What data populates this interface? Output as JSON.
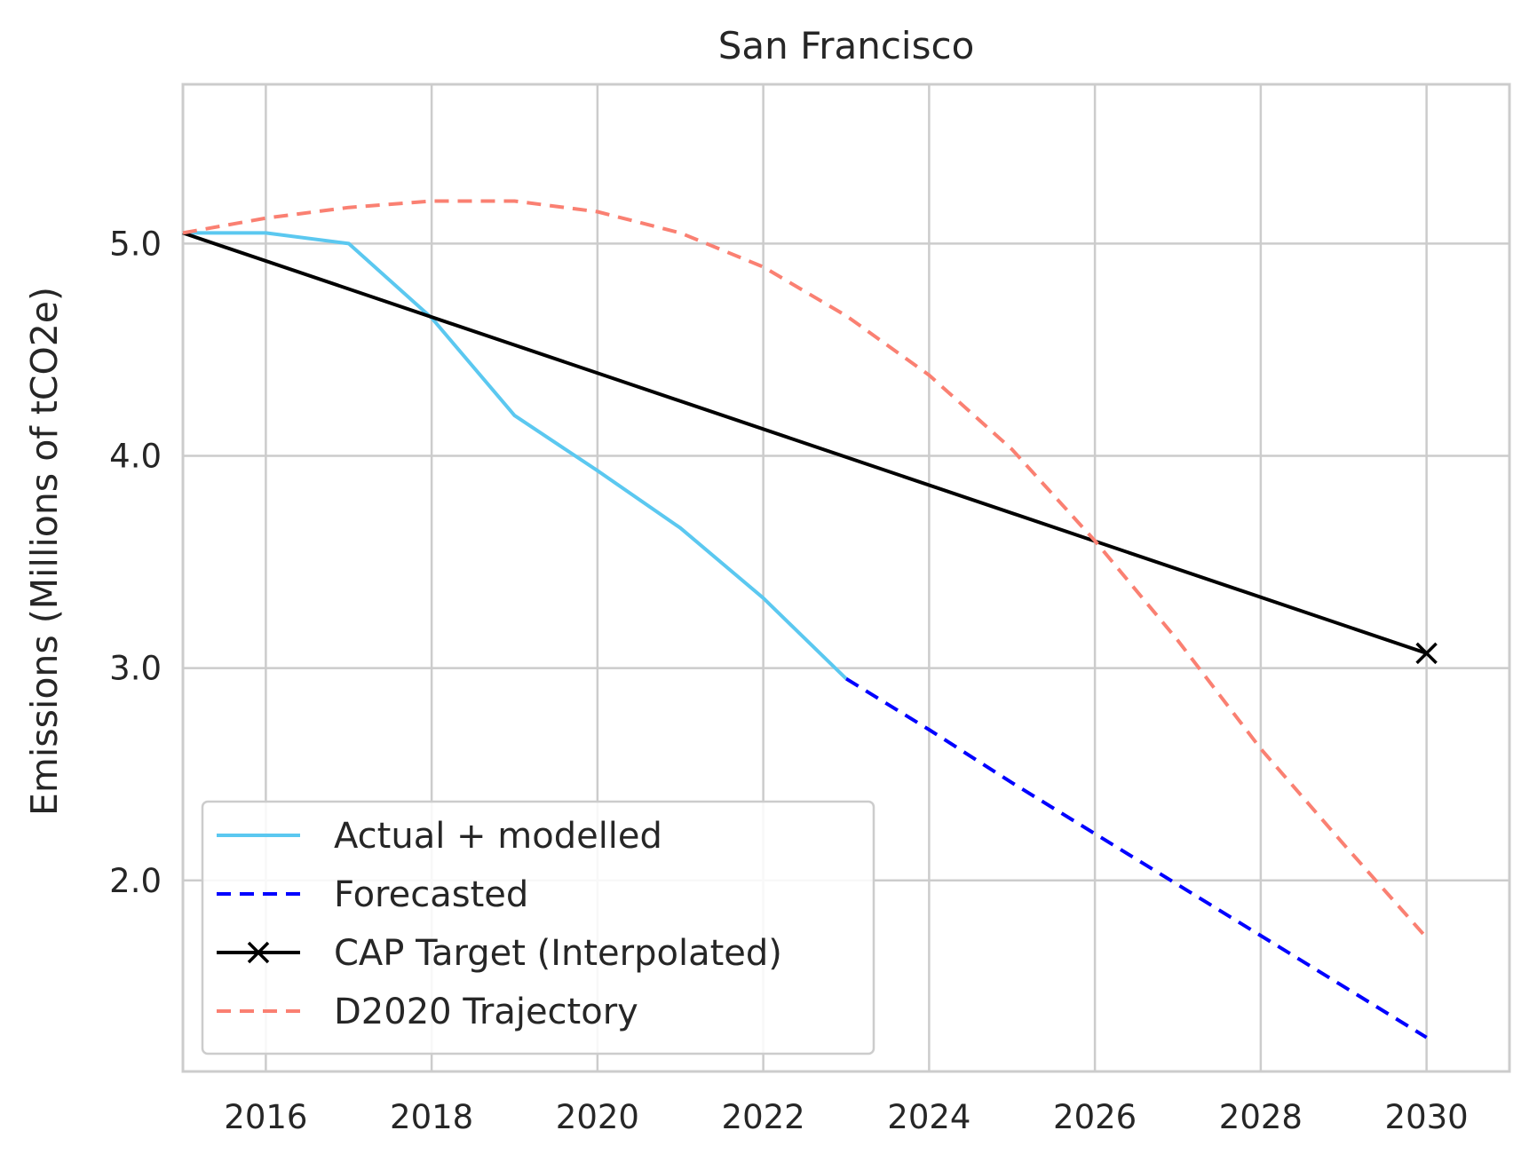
{
  "chart_data": {
    "type": "line",
    "title": "San Francisco",
    "xlabel": "",
    "ylabel": "Emissions (Millions of tCO2e)",
    "xlim": [
      2015,
      2031
    ],
    "ylim": [
      1.1,
      5.75
    ],
    "xticks": [
      2016,
      2018,
      2020,
      2022,
      2024,
      2026,
      2028,
      2030
    ],
    "yticks": [
      2.0,
      3.0,
      4.0,
      5.0
    ],
    "grid": true,
    "legend_position": "lower-left",
    "series": [
      {
        "name": "Actual + modelled",
        "color": "#5bc8f0",
        "style": "solid",
        "marker": "none",
        "x": [
          2015,
          2016,
          2017,
          2018,
          2019,
          2020,
          2021,
          2022,
          2023
        ],
        "y": [
          5.05,
          5.05,
          5.0,
          4.65,
          4.19,
          3.93,
          3.66,
          3.33,
          2.95
        ]
      },
      {
        "name": "Forecasted",
        "color": "#0000ff",
        "style": "dashed",
        "marker": "none",
        "x": [
          2023,
          2024,
          2025,
          2026,
          2027,
          2028,
          2029,
          2030
        ],
        "y": [
          2.95,
          2.71,
          2.46,
          2.22,
          1.98,
          1.74,
          1.5,
          1.26
        ]
      },
      {
        "name": "CAP Target (Interpolated)",
        "color": "#000000",
        "style": "solid",
        "marker": "x",
        "marker_x": [
          2030
        ],
        "x": [
          2015,
          2030
        ],
        "y": [
          5.05,
          3.07
        ]
      },
      {
        "name": "D2020 Trajectory",
        "color": "#fa8072",
        "style": "dashed",
        "marker": "none",
        "x": [
          2015,
          2016,
          2017,
          2018,
          2019,
          2020,
          2021,
          2022,
          2023,
          2024,
          2025,
          2026,
          2027,
          2028,
          2029,
          2030
        ],
        "y": [
          5.05,
          5.12,
          5.17,
          5.2,
          5.2,
          5.15,
          5.05,
          4.89,
          4.66,
          4.38,
          4.03,
          3.6,
          3.13,
          2.62,
          2.17,
          1.73
        ]
      }
    ]
  }
}
